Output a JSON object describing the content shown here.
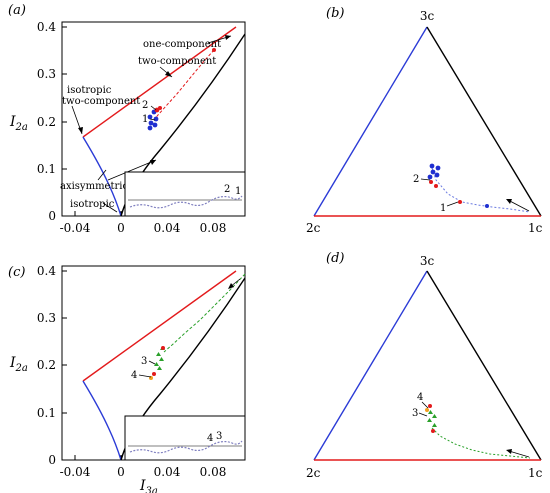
{
  "panels": {
    "a": {
      "label": "(a)"
    },
    "b": {
      "label": "(b)"
    },
    "c": {
      "label": "(c)"
    },
    "d": {
      "label": "(d)"
    }
  },
  "axes": {
    "ylabel": "I",
    "ylabel_sub": "2a",
    "xlabel": "I",
    "xlabel_sub": "3a",
    "xticks": [
      "-0.04",
      "0",
      "0.04",
      "0.08"
    ],
    "yticks": [
      "0",
      "0.1",
      "0.2",
      "0.3",
      "0.4"
    ]
  },
  "annotations_a": {
    "one_component": "one-component",
    "two_component": "two-component",
    "isotropic_two_component_line1": "isotropic",
    "isotropic_two_component_line2": "two-component",
    "axisymmetric": "axisymmetric",
    "isotropic": "isotropic"
  },
  "triangle_vertices": {
    "top": "3c",
    "left": "2c",
    "right": "1c"
  },
  "point_labels": {
    "p1": "1",
    "p2": "2",
    "p3": "3",
    "p4": "4"
  },
  "colors": {
    "two_component_line": "#e31a1c",
    "axisymmetric_left": "#2b3bd6",
    "axisymmetric_right": "#000000",
    "trajectory_red": "#e31a1c",
    "trajectory_blue": "#1f2fd0",
    "trajectory_green": "#2aa02a",
    "inset_line": "#8080c0"
  },
  "chart_data": [
    {
      "type": "line",
      "panel": "a",
      "title": "",
      "xlabel": "I3a",
      "ylabel": "I2a",
      "xlim": [
        -0.06,
        0.1
      ],
      "ylim": [
        0,
        0.41
      ],
      "series": [
        {
          "x": [
            -0.0278,
            0.074
          ],
          "values": [
            0.1667,
            0.3333
          ]
        },
        {
          "x": [
            -0.0278,
            -0.02,
            -0.012,
            -0.005,
            0
          ],
          "values": [
            0.1667,
            0.13,
            0.095,
            0.055,
            0
          ]
        },
        {
          "x": [
            0,
            0.005,
            0.015,
            0.03,
            0.05,
            0.074
          ],
          "values": [
            0,
            0.06,
            0.12,
            0.19,
            0.265,
            0.3333
          ]
        },
        {
          "x": [
            0.022,
            0.026,
            0.028,
            0.03,
            0.034,
            0.04,
            0.05,
            0.06,
            0.07
          ],
          "values": [
            0.195,
            0.2,
            0.205,
            0.21,
            0.218,
            0.232,
            0.255,
            0.29,
            0.33
          ]
        }
      ]
    },
    {
      "type": "line",
      "panel": "c",
      "title": "",
      "xlabel": "I3a",
      "ylabel": "I2a",
      "xlim": [
        -0.06,
        0.1
      ],
      "ylim": [
        0,
        0.41
      ],
      "series": [
        {
          "x": [
            -0.0278,
            0.074
          ],
          "values": [
            0.1667,
            0.3333
          ]
        },
        {
          "x": [
            -0.0278,
            -0.02,
            -0.012,
            -0.005,
            0
          ],
          "values": [
            0.1667,
            0.13,
            0.095,
            0.055,
            0
          ]
        },
        {
          "x": [
            0,
            0.005,
            0.015,
            0.03,
            0.05,
            0.074
          ],
          "values": [
            0,
            0.06,
            0.12,
            0.19,
            0.265,
            0.3333
          ]
        },
        {
          "x": [
            0.02,
            0.024,
            0.028,
            0.032,
            0.036,
            0.045,
            0.055,
            0.065,
            0.075
          ],
          "values": [
            0.18,
            0.19,
            0.2,
            0.21,
            0.22,
            0.25,
            0.28,
            0.31,
            0.34
          ]
        }
      ]
    }
  ]
}
